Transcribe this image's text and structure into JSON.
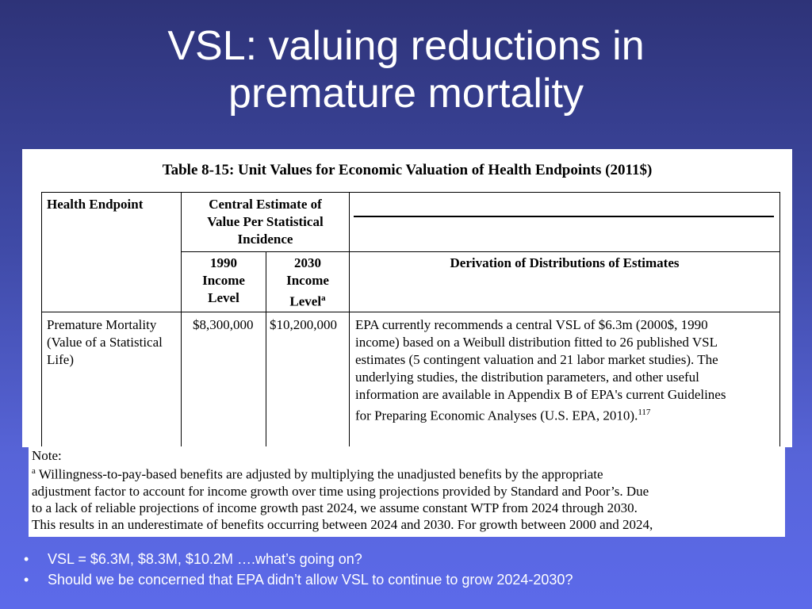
{
  "slide": {
    "title_line1": "VSL: valuing reductions in",
    "title_line2": "premature mortality"
  },
  "table": {
    "caption": "Table 8-15: Unit Values for Economic Valuation of Health Endpoints (2011$)",
    "headers": {
      "health_endpoint": "Health Endpoint",
      "central_estimate_line1": "Central Estimate of",
      "central_estimate_line2": "Value Per Statistical",
      "central_estimate_line3": "Incidence",
      "income_1990_line1": "1990",
      "income_1990_line2": "Income",
      "income_1990_line3": "Level",
      "income_2030_line1": "2030",
      "income_2030_line2": "Income",
      "income_2030_line3": "Level",
      "income_2030_sup": "a",
      "derivation": "Derivation of Distributions of Estimates"
    },
    "row": {
      "endpoint_line1": "Premature Mortality",
      "endpoint_line2": "(Value of a Statistical",
      "endpoint_line3": "Life)",
      "value_1990": "$8,300,000",
      "value_2030": "$10,200,000",
      "derivation_line1": "EPA currently recommends a central VSL of $6.3m (2000$, 1990",
      "derivation_line2": "income) based on a Weibull distribution fitted to 26 published VSL",
      "derivation_line3": "estimates (5 contingent valuation and 21 labor market studies).  The",
      "derivation_line4": "underlying studies, the distribution parameters, and other useful",
      "derivation_line5": "information are available in Appendix B of EPA's current Guidelines",
      "derivation_line6": "for Preparing Economic Analyses (U.S. EPA, 2010).",
      "derivation_sup": "117"
    }
  },
  "note": {
    "heading": "Note:",
    "sup": "a",
    "line1": " Willingness-to-pay-based benefits are adjusted by multiplying the unadjusted benefits by the appropriate",
    "line2": "adjustment factor to account for income growth over time using projections provided by Standard and Poor’s.  Due",
    "line3": "to a lack of reliable projections of income growth past 2024, we assume constant WTP from 2024 through 2030.",
    "line4": "This results in an underestimate of benefits occurring between 2024 and 2030.  For growth between 2000 and 2024,"
  },
  "bullets": {
    "marker": "•",
    "item1": "VSL = $6.3M, $8.3M, $10.2M ….what’s going on?",
    "item2": "Should we be concerned that EPA didn’t allow VSL to continue to grow 2024-2030?"
  },
  "colors": {
    "background_top": "#2e3378",
    "background_bottom": "#5c6aea",
    "title_text": "#ffffff"
  }
}
